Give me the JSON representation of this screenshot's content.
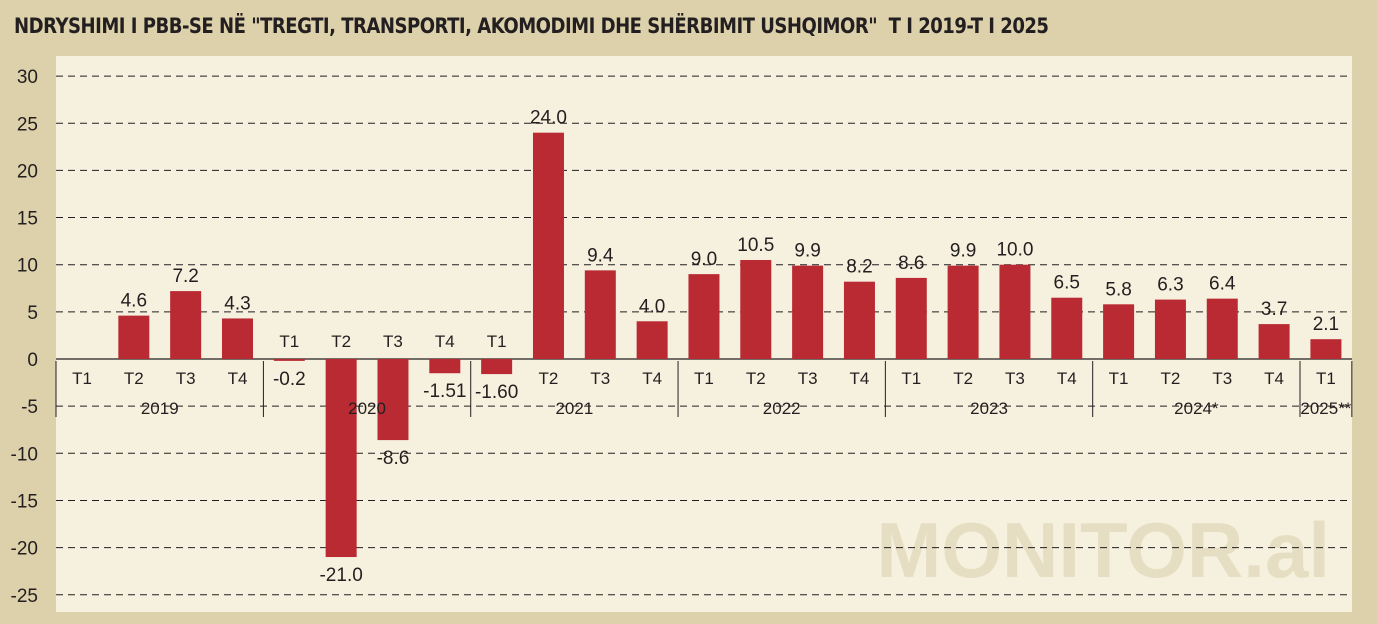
{
  "title": "NDRYSHIMI I PBB-SE NË \"TREGTI, TRANSPORTI, AKOMODIMI DHE SHËRBIMIT USHQIMOR\"  T I 2019-T I 2025",
  "watermark": "MONITOR.al",
  "colors": {
    "background": "#dcd1ab",
    "plot_background": "#f6f1de",
    "bar": "#b92a33",
    "text": "#231f20"
  },
  "chart_data": {
    "type": "bar",
    "title": "NDRYSHIMI I PBB-SE NË \"TREGTI, TRANSPORTI, AKOMODIMI DHE SHËRBIMIT USHQIMOR\"  T I 2019-T I 2025",
    "xlabel": "",
    "ylabel": "",
    "ylim": [
      -25,
      30
    ],
    "yticks": [
      "30",
      "25",
      "20",
      "15",
      "10",
      "5",
      "0",
      "-5",
      "-10",
      "-15",
      "-20",
      "-25"
    ],
    "grid": "horizontal dashed",
    "legend": "none",
    "categories": [
      "T1",
      "T2",
      "T3",
      "T4",
      "T1",
      "T2",
      "T3",
      "T4",
      "T1",
      "T2",
      "T3",
      "T4",
      "T1",
      "T2",
      "T3",
      "T4",
      "T1",
      "T2",
      "T3",
      "T4",
      "T1",
      "T2",
      "T3",
      "T4",
      "T1"
    ],
    "years": [
      {
        "label": "2019",
        "count": 4
      },
      {
        "label": "2020",
        "count": 4
      },
      {
        "label": "2021",
        "count": 4
      },
      {
        "label": "2022",
        "count": 4
      },
      {
        "label": "2023",
        "count": 4
      },
      {
        "label": "2024*",
        "count": 4
      },
      {
        "label": "2025**",
        "count": 1
      }
    ],
    "values": [
      null,
      4.6,
      7.2,
      4.3,
      -0.2,
      -21.0,
      -8.6,
      -1.51,
      -1.6,
      24.0,
      9.4,
      4.0,
      9.0,
      10.5,
      9.9,
      8.2,
      8.6,
      9.9,
      10.0,
      6.5,
      5.8,
      6.3,
      6.4,
      3.7,
      2.1
    ],
    "data_labels": [
      "",
      "4.6",
      "7.2",
      "4.3",
      "-0.2",
      "-21.0",
      "-8.6",
      "-1.51",
      "-1.60",
      "24.0",
      "9.4",
      "4.0",
      "9.0",
      "10.5",
      "9.9",
      "8.2",
      "8.6",
      "9.9",
      "10.0",
      "6.5",
      "5.8",
      "6.3",
      "6.4",
      "3.7",
      "2.1"
    ]
  }
}
